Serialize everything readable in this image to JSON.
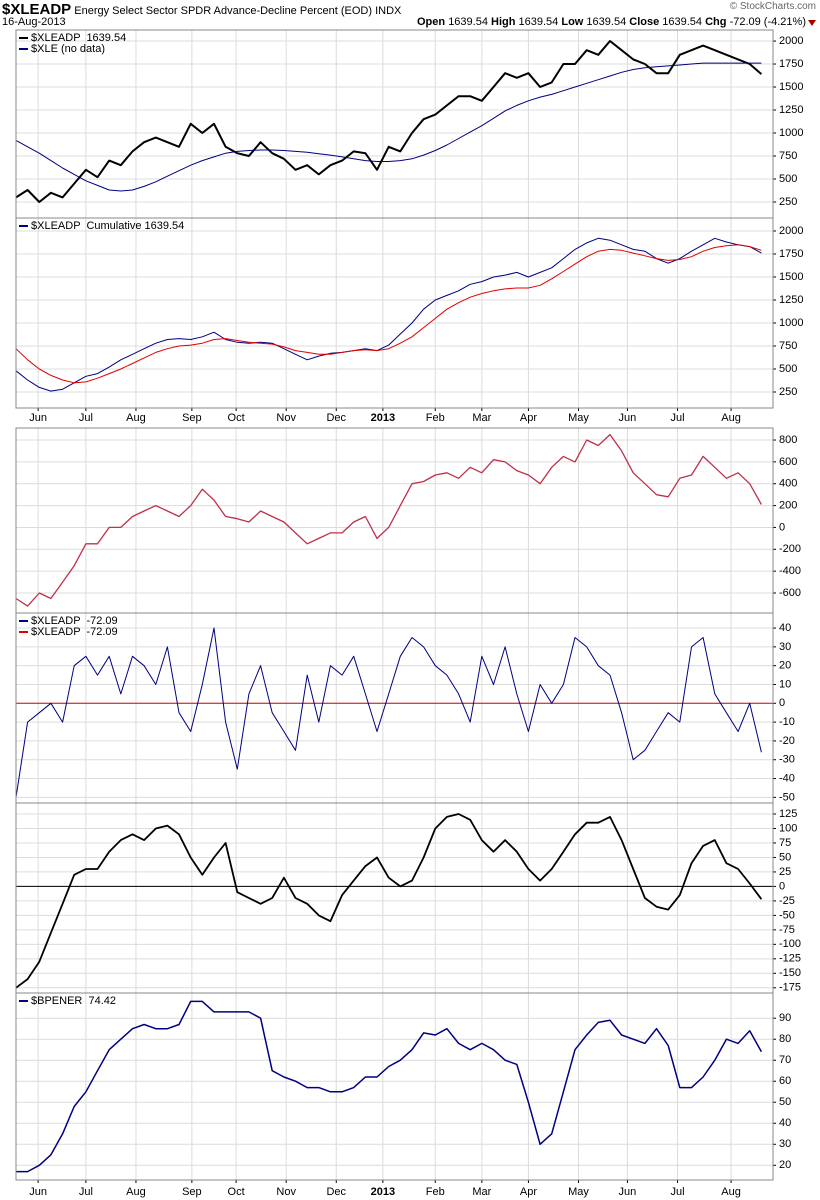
{
  "header": {
    "symbol": "$XLEADP",
    "description": "Energy Select Sector SPDR Advance-Decline Percent (EOD)",
    "exchange": "INDX",
    "date": "16-Aug-2013",
    "source": "© StockCharts.com",
    "quote": [
      {
        "label": "Open",
        "value": "1639.54"
      },
      {
        "label": "High",
        "value": "1639.54"
      },
      {
        "label": "Low",
        "value": "1639.54"
      },
      {
        "label": "Close",
        "value": "1639.54"
      },
      {
        "label": "Chg",
        "value": "-72.09 (-4.21%)"
      }
    ]
  },
  "chart_data": [
    {
      "type": "line",
      "xlim": [
        0,
        65
      ],
      "ylim": [
        76,
        2120
      ],
      "yticks": [
        250,
        500,
        750,
        1000,
        1250,
        1500,
        1750,
        2000
      ],
      "grid": true,
      "series": [
        {
          "name": "$XLEADP  1639.54",
          "color": "#000000",
          "width": 2,
          "values": [
            300,
            380,
            250,
            350,
            300,
            450,
            600,
            520,
            700,
            650,
            800,
            900,
            950,
            900,
            850,
            1100,
            1000,
            1100,
            850,
            780,
            750,
            900,
            780,
            720,
            600,
            650,
            550,
            650,
            700,
            800,
            780,
            600,
            850,
            800,
            1000,
            1150,
            1200,
            1300,
            1400,
            1400,
            1350,
            1500,
            1650,
            1600,
            1650,
            1500,
            1550,
            1750,
            1750,
            1900,
            1850,
            2000,
            1900,
            1800,
            1750,
            1650,
            1650,
            1850,
            1900,
            1950,
            1900,
            1850,
            1800,
            1750,
            1640
          ]
        },
        {
          "name": "$XLE (no data)",
          "color": "#000080",
          "width": 1,
          "values": [
            920,
            850,
            780,
            700,
            620,
            550,
            480,
            430,
            380,
            370,
            380,
            420,
            470,
            530,
            590,
            650,
            700,
            740,
            780,
            800,
            810,
            815,
            815,
            810,
            800,
            790,
            775,
            760,
            740,
            720,
            700,
            690,
            690,
            700,
            720,
            760,
            810,
            870,
            940,
            1010,
            1080,
            1160,
            1240,
            1300,
            1350,
            1390,
            1420,
            1460,
            1500,
            1540,
            1580,
            1620,
            1660,
            1690,
            1710,
            1720,
            1730,
            1740,
            1750,
            1760,
            1760,
            1760,
            1760,
            1760,
            1760
          ]
        }
      ]
    },
    {
      "type": "line",
      "xlim": [
        0,
        65
      ],
      "ylim": [
        76,
        2141
      ],
      "yticks": [
        250,
        500,
        750,
        1000,
        1250,
        1500,
        1750,
        2000
      ],
      "grid": true,
      "xticks": [
        {
          "value": 1.9,
          "label": "Jun"
        },
        {
          "value": 6.0,
          "label": "Jul"
        },
        {
          "value": 10.3,
          "label": "Aug"
        },
        {
          "value": 15.1,
          "label": "Sep"
        },
        {
          "value": 18.9,
          "label": "Oct"
        },
        {
          "value": 23.2,
          "label": "Nov"
        },
        {
          "value": 27.5,
          "label": "Dec"
        },
        {
          "value": 31.5,
          "label": "2013"
        },
        {
          "value": 36.0,
          "label": "Feb"
        },
        {
          "value": 40.0,
          "label": "Mar"
        },
        {
          "value": 44.0,
          "label": "Apr"
        },
        {
          "value": 48.3,
          "label": "May"
        },
        {
          "value": 52.5,
          "label": "Jun"
        },
        {
          "value": 56.8,
          "label": "Jul"
        },
        {
          "value": 61.4,
          "label": "Aug"
        }
      ],
      "series": [
        {
          "name": "$XLEADP  Cumulative 1639.54",
          "color": "#000080",
          "width": 1,
          "values": [
            480,
            380,
            300,
            260,
            280,
            350,
            420,
            450,
            520,
            600,
            660,
            720,
            780,
            820,
            830,
            820,
            850,
            900,
            820,
            790,
            780,
            790,
            780,
            720,
            660,
            600,
            640,
            670,
            680,
            700,
            720,
            700,
            760,
            880,
            1000,
            1150,
            1250,
            1300,
            1350,
            1420,
            1450,
            1500,
            1520,
            1550,
            1500,
            1550,
            1600,
            1700,
            1800,
            1870,
            1920,
            1900,
            1850,
            1800,
            1780,
            1700,
            1650,
            1700,
            1780,
            1850,
            1920,
            1880,
            1850,
            1830,
            1760
          ]
        },
        {
          "color": "#e00000",
          "width": 1,
          "values": [
            720,
            600,
            500,
            430,
            380,
            350,
            360,
            400,
            450,
            500,
            560,
            620,
            680,
            720,
            750,
            760,
            780,
            820,
            830,
            810,
            790,
            780,
            770,
            740,
            700,
            680,
            660,
            660,
            680,
            700,
            710,
            700,
            720,
            780,
            850,
            950,
            1050,
            1150,
            1220,
            1280,
            1320,
            1350,
            1370,
            1380,
            1380,
            1410,
            1480,
            1560,
            1640,
            1720,
            1780,
            1800,
            1790,
            1760,
            1730,
            1700,
            1680,
            1690,
            1720,
            1780,
            1820,
            1840,
            1850,
            1830,
            1790
          ]
        }
      ]
    },
    {
      "type": "line",
      "xlim": [
        0,
        65
      ],
      "ylim": [
        -783,
        910
      ],
      "yticks": [
        -600,
        -400,
        -200,
        0,
        200,
        400,
        600,
        800
      ],
      "grid": true,
      "series": [
        {
          "color": "#c0304a",
          "width": 1.3,
          "values": [
            -650,
            -720,
            -600,
            -650,
            -500,
            -350,
            -150,
            -150,
            0,
            0,
            100,
            150,
            200,
            150,
            100,
            200,
            350,
            250,
            100,
            80,
            50,
            150,
            100,
            50,
            -50,
            -150,
            -100,
            -50,
            -50,
            50,
            100,
            -100,
            0,
            200,
            400,
            420,
            480,
            500,
            450,
            550,
            500,
            620,
            600,
            520,
            480,
            400,
            550,
            650,
            600,
            800,
            750,
            850,
            700,
            500,
            400,
            300,
            280,
            450,
            480,
            650,
            550,
            450,
            500,
            400,
            210
          ]
        }
      ]
    },
    {
      "type": "line",
      "xlim": [
        0,
        65
      ],
      "ylim": [
        -53,
        48
      ],
      "yticks": [
        -50,
        -40,
        -30,
        -20,
        -10,
        0,
        10,
        20,
        30,
        40
      ],
      "grid": true,
      "reference_line": {
        "name": "$XLEADP  -72.09",
        "value": 0,
        "color": "#e00000"
      },
      "series": [
        {
          "name": "$XLEADP  -72.09",
          "color": "#000080",
          "width": 1,
          "values": [
            -50,
            -10,
            -5,
            0,
            -10,
            20,
            25,
            15,
            25,
            5,
            25,
            20,
            10,
            30,
            -5,
            -15,
            10,
            40,
            -10,
            -35,
            5,
            20,
            -5,
            -15,
            -25,
            15,
            -10,
            20,
            15,
            25,
            5,
            -15,
            5,
            25,
            35,
            30,
            20,
            15,
            5,
            -10,
            25,
            10,
            30,
            5,
            -15,
            10,
            0,
            10,
            35,
            30,
            20,
            15,
            -5,
            -30,
            -25,
            -15,
            -5,
            -10,
            30,
            35,
            5,
            -5,
            -15,
            0,
            -26
          ]
        }
      ]
    },
    {
      "type": "line",
      "xlim": [
        0,
        65
      ],
      "ylim": [
        -184,
        144
      ],
      "yticks": [
        -175,
        -150,
        -125,
        -100,
        -75,
        -50,
        -25,
        0,
        25,
        50,
        75,
        100,
        125
      ],
      "grid": true,
      "reference_line": {
        "value": 0,
        "color": "#000000"
      },
      "series": [
        {
          "color": "#000000",
          "width": 1.8,
          "values": [
            -175,
            -160,
            -130,
            -80,
            -30,
            20,
            30,
            30,
            60,
            80,
            90,
            80,
            100,
            105,
            90,
            50,
            20,
            50,
            75,
            -10,
            -20,
            -30,
            -20,
            15,
            -20,
            -30,
            -50,
            -60,
            -15,
            10,
            35,
            50,
            15,
            0,
            10,
            50,
            100,
            120,
            125,
            115,
            80,
            60,
            80,
            60,
            30,
            10,
            30,
            60,
            90,
            110,
            110,
            120,
            80,
            30,
            -20,
            -35,
            -40,
            -15,
            40,
            70,
            80,
            40,
            30,
            5,
            -22
          ]
        }
      ]
    },
    {
      "type": "line",
      "xlim": [
        0,
        65
      ],
      "ylim": [
        13,
        102
      ],
      "yticks": [
        20,
        30,
        40,
        50,
        60,
        70,
        80,
        90
      ],
      "grid": true,
      "xticks": [
        {
          "value": 1.9,
          "label": "Jun"
        },
        {
          "value": 6.0,
          "label": "Jul"
        },
        {
          "value": 10.3,
          "label": "Aug"
        },
        {
          "value": 15.1,
          "label": "Sep"
        },
        {
          "value": 18.9,
          "label": "Oct"
        },
        {
          "value": 23.2,
          "label": "Nov"
        },
        {
          "value": 27.5,
          "label": "Dec"
        },
        {
          "value": 31.5,
          "label": "2013"
        },
        {
          "value": 36.0,
          "label": "Feb"
        },
        {
          "value": 40.0,
          "label": "Mar"
        },
        {
          "value": 44.0,
          "label": "Apr"
        },
        {
          "value": 48.3,
          "label": "May"
        },
        {
          "value": 52.5,
          "label": "Jun"
        },
        {
          "value": 56.8,
          "label": "Jul"
        },
        {
          "value": 61.4,
          "label": "Aug"
        }
      ],
      "series": [
        {
          "name": "$BPENER  74.42",
          "color": "#000080",
          "width": 1.5,
          "values": [
            17,
            17,
            20,
            25,
            35,
            48,
            55,
            65,
            75,
            80,
            85,
            87,
            85,
            85,
            87,
            98,
            98,
            93,
            93,
            93,
            93,
            90,
            65,
            62,
            60,
            57,
            57,
            55,
            55,
            57,
            62,
            62,
            67,
            70,
            75,
            83,
            82,
            85,
            78,
            75,
            78,
            75,
            70,
            68,
            50,
            30,
            35,
            55,
            75,
            82,
            88,
            89,
            82,
            80,
            78,
            85,
            77,
            57,
            57,
            62,
            70,
            80,
            78,
            84,
            74
          ]
        }
      ]
    }
  ]
}
